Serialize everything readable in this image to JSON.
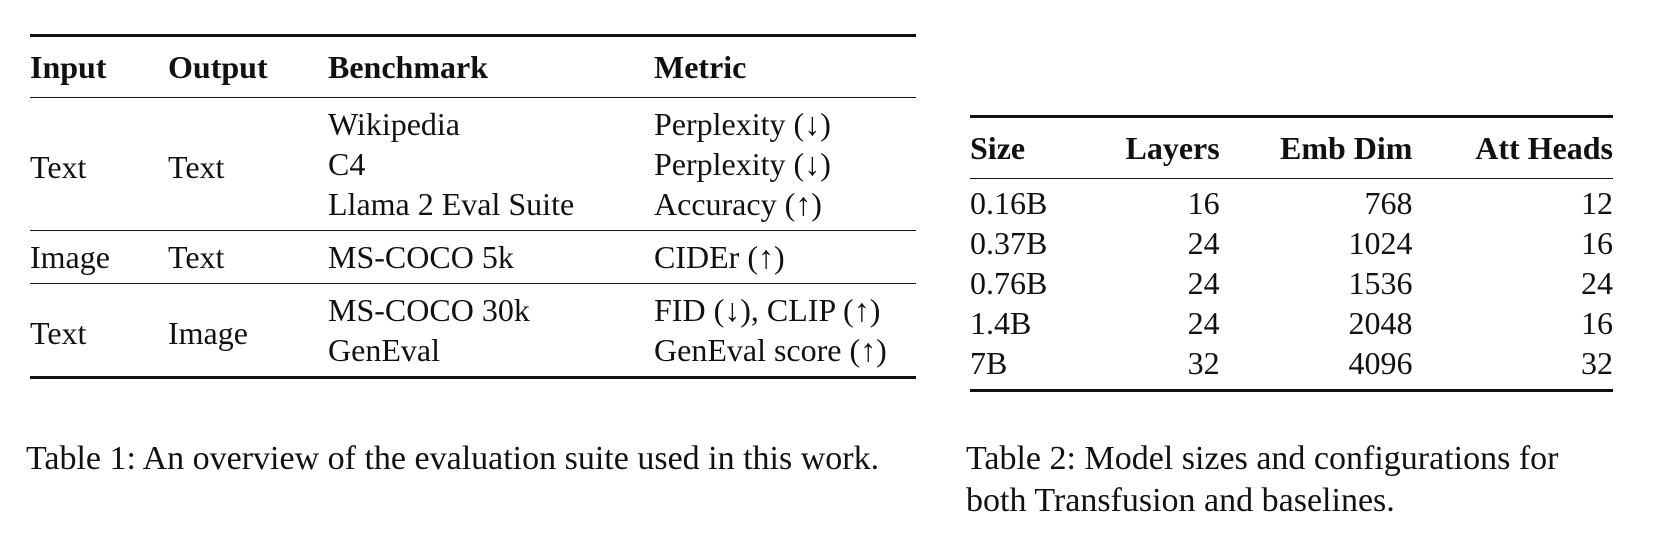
{
  "tables": [
    {
      "header": [
        "Input",
        "Output",
        "Benchmark",
        "Metric"
      ],
      "groups": [
        {
          "input": "Text",
          "output": "Text",
          "rows": [
            [
              "Wikipedia",
              "Perplexity (↓)"
            ],
            [
              "C4",
              "Perplexity (↓)"
            ],
            [
              "Llama 2 Eval Suite",
              "Accuracy (↑)"
            ]
          ]
        },
        {
          "input": "Image",
          "output": "Text",
          "rows": [
            [
              "MS-COCO 5k",
              "CIDEr (↑)"
            ]
          ]
        },
        {
          "input": "Text",
          "output": "Image",
          "rows": [
            [
              "MS-COCO 30k",
              "FID (↓), CLIP (↑)"
            ],
            [
              "GenEval",
              "GenEval score (↑)"
            ]
          ]
        }
      ],
      "caption": "Table 1: An overview of the evaluation suite used in this work."
    },
    {
      "header": [
        "Size",
        "Layers",
        "Emb Dim",
        "Att Heads"
      ],
      "rows": [
        [
          "0.16B",
          16,
          768,
          12
        ],
        [
          "0.37B",
          24,
          1024,
          16
        ],
        [
          "0.76B",
          24,
          1536,
          24
        ],
        [
          "1.4B",
          24,
          2048,
          16
        ],
        [
          "7B",
          32,
          4096,
          32
        ]
      ],
      "caption": "Table 2: Model sizes and configurations for both Transfusion and baselines."
    }
  ]
}
